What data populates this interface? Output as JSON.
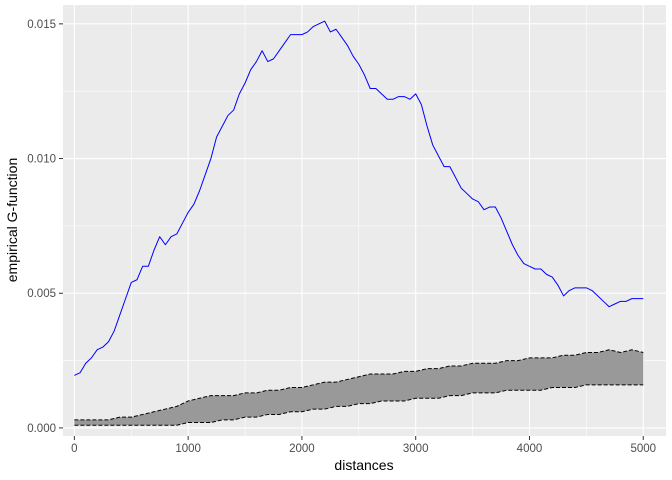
{
  "chart_data": {
    "type": "line",
    "title": "",
    "xlabel": "distances",
    "ylabel": "empirical G-function",
    "xlim": [
      -100,
      5200
    ],
    "ylim": [
      -0.0003,
      0.0157
    ],
    "x_ticks": [
      0,
      1000,
      2000,
      3000,
      4000,
      5000
    ],
    "x_tick_labels": [
      "0",
      "1000",
      "2000",
      "3000",
      "4000",
      "5000"
    ],
    "y_ticks": [
      0.0,
      0.005,
      0.01,
      0.015
    ],
    "y_tick_labels": [
      "0.000",
      "0.005",
      "0.010",
      "0.015"
    ],
    "grid": true,
    "legend": "none",
    "colors": {
      "panel_background": "#EBEBEB",
      "grid_major": "#FFFFFF",
      "line": "#0000FF",
      "envelope_fill": "#999999",
      "envelope_border": "#000000"
    },
    "series": [
      {
        "style": "solid-line",
        "x": [
          0,
          50,
          100,
          150,
          200,
          250,
          300,
          350,
          400,
          450,
          500,
          550,
          600,
          650,
          700,
          750,
          800,
          850,
          900,
          950,
          1000,
          1050,
          1100,
          1150,
          1200,
          1250,
          1300,
          1350,
          1400,
          1450,
          1500,
          1550,
          1600,
          1650,
          1700,
          1750,
          1800,
          1850,
          1900,
          1950,
          2000,
          2050,
          2100,
          2150,
          2200,
          2250,
          2300,
          2350,
          2400,
          2450,
          2500,
          2550,
          2600,
          2650,
          2700,
          2750,
          2800,
          2850,
          2900,
          2950,
          3000,
          3050,
          3100,
          3150,
          3200,
          3250,
          3300,
          3350,
          3400,
          3450,
          3500,
          3550,
          3600,
          3650,
          3700,
          3750,
          3800,
          3850,
          3900,
          3950,
          4000,
          4050,
          4100,
          4150,
          4200,
          4250,
          4300,
          4350,
          4400,
          4450,
          4500,
          4550,
          4600,
          4650,
          4700,
          4750,
          4800,
          4850,
          4900,
          4950,
          5000
        ],
        "values": [
          0.00195,
          0.00205,
          0.0024,
          0.0026,
          0.0029,
          0.003,
          0.0032,
          0.0036,
          0.0042,
          0.0048,
          0.0054,
          0.0055,
          0.006,
          0.006,
          0.0066,
          0.0071,
          0.0068,
          0.0071,
          0.0072,
          0.0076,
          0.008,
          0.0083,
          0.0088,
          0.0094,
          0.01,
          0.0108,
          0.0112,
          0.0116,
          0.0118,
          0.0124,
          0.0128,
          0.0133,
          0.0136,
          0.014,
          0.0136,
          0.0137,
          0.014,
          0.0143,
          0.0146,
          0.0146,
          0.0146,
          0.0147,
          0.0149,
          0.015,
          0.0151,
          0.0147,
          0.0148,
          0.0145,
          0.0142,
          0.0138,
          0.0135,
          0.0131,
          0.0126,
          0.0126,
          0.0124,
          0.0122,
          0.0122,
          0.0123,
          0.0123,
          0.0122,
          0.0124,
          0.012,
          0.0112,
          0.0105,
          0.0101,
          0.0097,
          0.0097,
          0.0093,
          0.0089,
          0.0087,
          0.0085,
          0.0084,
          0.0081,
          0.0082,
          0.0082,
          0.0078,
          0.0073,
          0.0068,
          0.0064,
          0.0061,
          0.006,
          0.0059,
          0.0059,
          0.0057,
          0.0056,
          0.0053,
          0.0049,
          0.0051,
          0.0052,
          0.0052,
          0.0052,
          0.0051,
          0.0049,
          0.0047,
          0.0045,
          0.0046,
          0.0047,
          0.0047,
          0.0048,
          0.0048,
          0.0048
        ]
      },
      {
        "style": "envelope-band",
        "x": [
          0,
          100,
          200,
          300,
          400,
          500,
          600,
          700,
          800,
          900,
          1000,
          1100,
          1200,
          1300,
          1400,
          1500,
          1600,
          1700,
          1800,
          1900,
          2000,
          2100,
          2200,
          2300,
          2400,
          2500,
          2600,
          2700,
          2800,
          2900,
          3000,
          3100,
          3200,
          3300,
          3400,
          3500,
          3600,
          3700,
          3800,
          3900,
          4000,
          4100,
          4200,
          4300,
          4400,
          4500,
          4600,
          4700,
          4800,
          4900,
          5000
        ],
        "upper": [
          0.0003,
          0.0003,
          0.0003,
          0.0003,
          0.0004,
          0.0004,
          0.0005,
          0.0006,
          0.0007,
          0.0008,
          0.001,
          0.0011,
          0.0012,
          0.0012,
          0.0012,
          0.0013,
          0.0013,
          0.0014,
          0.0014,
          0.0015,
          0.0015,
          0.0016,
          0.0017,
          0.0017,
          0.0018,
          0.0019,
          0.002,
          0.002,
          0.002,
          0.0021,
          0.0021,
          0.0022,
          0.0022,
          0.0023,
          0.0023,
          0.0024,
          0.0024,
          0.0024,
          0.0025,
          0.0025,
          0.0026,
          0.0026,
          0.0026,
          0.0027,
          0.0027,
          0.0028,
          0.0028,
          0.0029,
          0.0028,
          0.0029,
          0.0028
        ],
        "lower": [
          0.0001,
          0.0001,
          0.0001,
          0.0001,
          0.0001,
          0.0001,
          0.0001,
          0.0001,
          0.0001,
          0.0001,
          0.0002,
          0.0002,
          0.0002,
          0.0003,
          0.0003,
          0.0004,
          0.0004,
          0.0005,
          0.0005,
          0.0006,
          0.0006,
          0.0007,
          0.0007,
          0.0008,
          0.0008,
          0.0009,
          0.0009,
          0.001,
          0.001,
          0.001,
          0.0011,
          0.0011,
          0.0011,
          0.0012,
          0.0012,
          0.0013,
          0.0013,
          0.0013,
          0.0014,
          0.0014,
          0.0014,
          0.0014,
          0.0015,
          0.0015,
          0.0015,
          0.0016,
          0.0016,
          0.0016,
          0.0016,
          0.0016,
          0.0016
        ]
      }
    ]
  }
}
